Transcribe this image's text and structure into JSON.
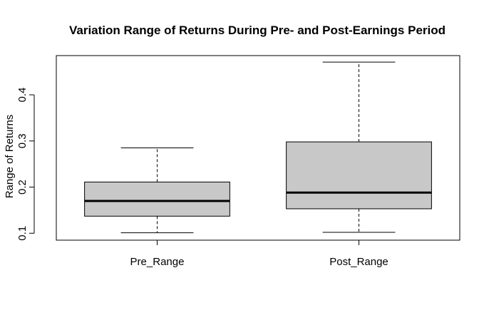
{
  "chart_data": {
    "type": "boxplot",
    "title": "Variation Range of Returns During Pre- and Post-Earnings Period",
    "xlabel": "",
    "ylabel": "Range of Returns",
    "ylim": [
      0.085,
      0.485
    ],
    "yticks": [
      0.1,
      0.2,
      0.3,
      0.4
    ],
    "ytick_labels": [
      "0.1",
      "0.2",
      "0.3",
      "0.4"
    ],
    "categories": [
      "Pre_Range",
      "Post_Range"
    ],
    "boxes": [
      {
        "category": "Pre_Range",
        "whisker_low": 0.101,
        "q1": 0.137,
        "median": 0.17,
        "q3": 0.211,
        "whisker_high": 0.285
      },
      {
        "category": "Post_Range",
        "whisker_low": 0.102,
        "q1": 0.153,
        "median": 0.188,
        "q3": 0.298,
        "whisker_high": 0.471
      }
    ],
    "box_fill": "#c8c8c8",
    "grid": false,
    "legend": "none"
  }
}
